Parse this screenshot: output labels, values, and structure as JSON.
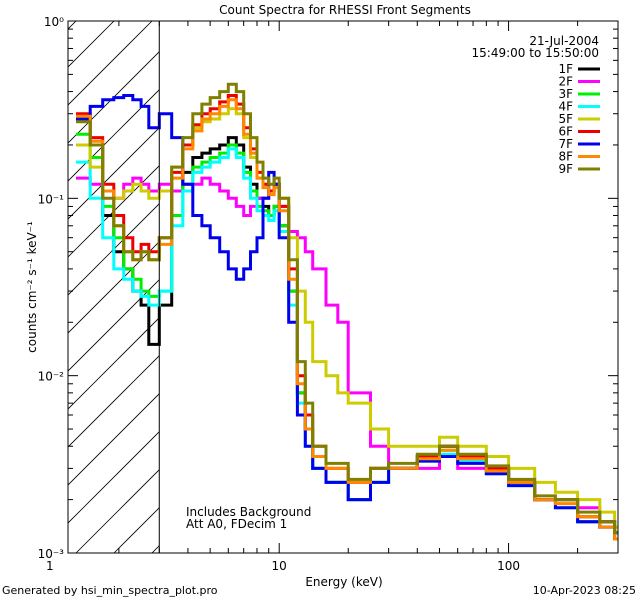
{
  "chart_data": {
    "type": "line",
    "title": "Count Spectra for RHESSI Front Segments",
    "xlabel": "Energy (keV)",
    "ylabel": "counts cm⁻² s⁻¹ keV⁻¹",
    "xscale": "log",
    "yscale": "log",
    "xlim": [
      1.2,
      300
    ],
    "ylim": [
      0.001,
      1.0
    ],
    "x_ticks": [
      {
        "value": 1,
        "label": "1"
      },
      {
        "value": 10,
        "label": "10"
      },
      {
        "value": 100,
        "label": "100"
      }
    ],
    "y_ticks": [
      {
        "value": 1,
        "label": "10⁰"
      },
      {
        "value": 0.1,
        "label": "10⁻¹"
      },
      {
        "value": 0.01,
        "label": "10⁻²"
      },
      {
        "value": 0.001,
        "label": "10⁻³"
      }
    ],
    "attenuator_cutoff_keV": 3,
    "legend_position": "top-right",
    "date": "21-Jul-2004",
    "time_range": "15:49:00 to 15:50:00",
    "annotation_lines": [
      "Includes Background",
      "Att A0, FDecim 1"
    ],
    "footer_left": "Generated by hsi_min_spectra_plot.pro",
    "footer_right": "10-Apr-2023 08:25",
    "series": [
      {
        "name": "1F",
        "color": "#000000",
        "x": [
          1.3,
          1.5,
          1.7,
          1.9,
          2.1,
          2.3,
          2.5,
          2.7,
          3.0,
          3.4,
          3.8,
          4.2,
          4.6,
          5.0,
          5.5,
          6.0,
          6.5,
          7.0,
          7.5,
          8.0,
          8.5,
          9.0,
          9.5,
          10.0,
          11.0,
          12.0,
          13.0,
          14.0,
          16.0,
          20.0,
          25.0,
          30.0,
          40.0,
          50.0,
          60.0,
          80.0,
          100.0,
          130.0,
          160.0,
          200.0,
          250.0,
          290.0
        ],
        "y": [
          0.28,
          0.2,
          0.08,
          0.05,
          0.04,
          0.03,
          0.025,
          0.015,
          0.025,
          0.11,
          0.14,
          0.17,
          0.18,
          0.19,
          0.2,
          0.22,
          0.2,
          0.15,
          0.12,
          0.1,
          0.09,
          0.08,
          0.09,
          0.07,
          0.03,
          0.008,
          0.005,
          0.003,
          0.0025,
          0.002,
          0.003,
          0.003,
          0.0035,
          0.004,
          0.0035,
          0.003,
          0.0025,
          0.002,
          0.002,
          0.0015,
          0.0015,
          0.0013
        ]
      },
      {
        "name": "2F",
        "color": "#ff00ff",
        "x": [
          1.3,
          1.5,
          1.7,
          1.9,
          2.1,
          2.3,
          2.5,
          2.7,
          3.0,
          3.4,
          3.8,
          4.2,
          4.6,
          5.0,
          5.5,
          6.0,
          6.5,
          7.0,
          7.5,
          8.0,
          8.5,
          9.0,
          9.5,
          10.0,
          11.0,
          12.0,
          13.0,
          14.0,
          16.0,
          18.0,
          20.0,
          25.0,
          30.0,
          40.0,
          50.0,
          60.0,
          80.0,
          100.0,
          130.0,
          160.0,
          200.0,
          250.0,
          290.0
        ],
        "y": [
          0.13,
          0.12,
          0.11,
          0.1,
          0.12,
          0.13,
          0.12,
          0.11,
          0.12,
          0.11,
          0.12,
          0.12,
          0.13,
          0.12,
          0.11,
          0.1,
          0.09,
          0.08,
          0.09,
          0.1,
          0.1,
          0.11,
          0.12,
          0.09,
          0.065,
          0.06,
          0.05,
          0.04,
          0.025,
          0.02,
          0.008,
          0.004,
          0.003,
          0.003,
          0.0035,
          0.003,
          0.003,
          0.0025,
          0.002,
          0.002,
          0.0018,
          0.0015,
          0.0013
        ]
      },
      {
        "name": "3F",
        "color": "#00ee00",
        "x": [
          1.3,
          1.5,
          1.7,
          1.9,
          2.1,
          2.3,
          2.5,
          2.7,
          3.0,
          3.4,
          3.8,
          4.2,
          4.6,
          5.0,
          5.5,
          6.0,
          6.5,
          7.0,
          7.5,
          8.0,
          8.5,
          9.0,
          9.5,
          10.0,
          11.0,
          12.0,
          13.0,
          14.0,
          16.0,
          20.0,
          25.0,
          30.0,
          40.0,
          50.0,
          60.0,
          80.0,
          100.0,
          130.0,
          160.0,
          200.0,
          250.0,
          290.0
        ],
        "y": [
          0.23,
          0.17,
          0.09,
          0.06,
          0.04,
          0.035,
          0.03,
          0.028,
          0.03,
          0.08,
          0.12,
          0.15,
          0.16,
          0.17,
          0.18,
          0.2,
          0.18,
          0.14,
          0.11,
          0.09,
          0.085,
          0.08,
          0.09,
          0.07,
          0.03,
          0.008,
          0.005,
          0.003,
          0.0025,
          0.002,
          0.0025,
          0.003,
          0.0035,
          0.0038,
          0.0035,
          0.003,
          0.0025,
          0.002,
          0.002,
          0.0016,
          0.0015,
          0.0013
        ]
      },
      {
        "name": "4F",
        "color": "#00ffff",
        "x": [
          1.3,
          1.5,
          1.7,
          1.9,
          2.1,
          2.3,
          2.5,
          2.7,
          3.0,
          3.4,
          3.8,
          4.2,
          4.6,
          5.0,
          5.5,
          6.0,
          6.5,
          7.0,
          7.5,
          8.0,
          8.5,
          9.0,
          9.5,
          10.0,
          11.0,
          12.0,
          13.0,
          14.0,
          16.0,
          20.0,
          25.0,
          30.0,
          40.0,
          50.0,
          60.0,
          80.0,
          100.0,
          130.0,
          160.0,
          200.0,
          250.0,
          290.0
        ],
        "y": [
          0.16,
          0.1,
          0.06,
          0.04,
          0.035,
          0.03,
          0.028,
          0.025,
          0.03,
          0.07,
          0.11,
          0.14,
          0.15,
          0.16,
          0.17,
          0.19,
          0.17,
          0.13,
          0.1,
          0.085,
          0.08,
          0.075,
          0.085,
          0.065,
          0.025,
          0.007,
          0.004,
          0.003,
          0.0025,
          0.002,
          0.0025,
          0.003,
          0.0033,
          0.0036,
          0.0033,
          0.0028,
          0.0024,
          0.002,
          0.0018,
          0.0015,
          0.0014,
          0.0012
        ]
      },
      {
        "name": "5F",
        "color": "#cccc00",
        "x": [
          1.3,
          1.5,
          1.7,
          1.9,
          2.1,
          2.3,
          2.5,
          2.7,
          3.0,
          3.4,
          3.8,
          4.2,
          4.6,
          5.0,
          5.5,
          6.0,
          6.5,
          7.0,
          7.5,
          8.0,
          8.5,
          9.0,
          9.5,
          10.0,
          11.0,
          12.0,
          13.0,
          14.0,
          16.0,
          18.0,
          20.0,
          25.0,
          30.0,
          40.0,
          50.0,
          60.0,
          80.0,
          100.0,
          130.0,
          160.0,
          200.0,
          250.0,
          290.0
        ],
        "y": [
          0.2,
          0.15,
          0.11,
          0.1,
          0.11,
          0.12,
          0.11,
          0.1,
          0.11,
          0.15,
          0.2,
          0.25,
          0.27,
          0.28,
          0.3,
          0.32,
          0.3,
          0.22,
          0.17,
          0.13,
          0.12,
          0.11,
          0.12,
          0.1,
          0.06,
          0.03,
          0.02,
          0.012,
          0.01,
          0.008,
          0.007,
          0.005,
          0.004,
          0.004,
          0.0045,
          0.004,
          0.0035,
          0.003,
          0.0025,
          0.0022,
          0.002,
          0.0017,
          0.0014
        ]
      },
      {
        "name": "6F",
        "color": "#ee0000",
        "x": [
          1.3,
          1.5,
          1.7,
          1.9,
          2.1,
          2.3,
          2.5,
          2.7,
          3.0,
          3.4,
          3.8,
          4.2,
          4.6,
          5.0,
          5.5,
          6.0,
          6.5,
          7.0,
          7.5,
          8.0,
          8.5,
          9.0,
          9.5,
          10.0,
          11.0,
          12.0,
          13.0,
          14.0,
          16.0,
          20.0,
          25.0,
          30.0,
          40.0,
          50.0,
          60.0,
          80.0,
          100.0,
          130.0,
          160.0,
          200.0,
          250.0,
          290.0
        ],
        "y": [
          0.3,
          0.22,
          0.12,
          0.08,
          0.06,
          0.05,
          0.055,
          0.05,
          0.06,
          0.14,
          0.2,
          0.26,
          0.3,
          0.32,
          0.35,
          0.38,
          0.34,
          0.25,
          0.19,
          0.14,
          0.12,
          0.11,
          0.12,
          0.09,
          0.04,
          0.01,
          0.006,
          0.004,
          0.003,
          0.0025,
          0.003,
          0.003,
          0.0035,
          0.004,
          0.0035,
          0.003,
          0.0025,
          0.002,
          0.002,
          0.0016,
          0.0015,
          0.0013
        ]
      },
      {
        "name": "7F",
        "color": "#0000ee",
        "x": [
          1.3,
          1.5,
          1.7,
          1.9,
          2.1,
          2.3,
          2.5,
          2.7,
          3.0,
          3.4,
          3.8,
          4.2,
          4.6,
          5.0,
          5.5,
          6.0,
          6.5,
          7.0,
          7.5,
          8.0,
          8.5,
          9.0,
          9.5,
          10.0,
          11.0,
          12.0,
          13.0,
          14.0,
          16.0,
          20.0,
          25.0,
          30.0,
          40.0,
          50.0,
          60.0,
          80.0,
          100.0,
          130.0,
          160.0,
          200.0,
          250.0,
          290.0
        ],
        "y": [
          0.28,
          0.33,
          0.36,
          0.37,
          0.38,
          0.36,
          0.33,
          0.25,
          0.3,
          0.22,
          0.12,
          0.08,
          0.07,
          0.06,
          0.05,
          0.04,
          0.035,
          0.04,
          0.05,
          0.06,
          0.1,
          0.14,
          0.12,
          0.06,
          0.02,
          0.006,
          0.004,
          0.003,
          0.0025,
          0.002,
          0.0025,
          0.003,
          0.0033,
          0.0035,
          0.0032,
          0.0028,
          0.0024,
          0.002,
          0.0018,
          0.0015,
          0.0014,
          0.0012
        ]
      },
      {
        "name": "8F",
        "color": "#ff8800",
        "x": [
          1.3,
          1.5,
          1.7,
          1.9,
          2.1,
          2.3,
          2.5,
          2.7,
          3.0,
          3.4,
          3.8,
          4.2,
          4.6,
          5.0,
          5.5,
          6.0,
          6.5,
          7.0,
          7.5,
          8.0,
          8.5,
          9.0,
          9.5,
          10.0,
          11.0,
          12.0,
          13.0,
          14.0,
          16.0,
          20.0,
          25.0,
          30.0,
          40.0,
          50.0,
          60.0,
          80.0,
          100.0,
          130.0,
          160.0,
          200.0,
          250.0,
          290.0
        ],
        "y": [
          0.29,
          0.21,
          0.11,
          0.07,
          0.05,
          0.045,
          0.05,
          0.045,
          0.055,
          0.13,
          0.19,
          0.24,
          0.28,
          0.3,
          0.33,
          0.36,
          0.32,
          0.23,
          0.18,
          0.13,
          0.115,
          0.105,
          0.115,
          0.085,
          0.035,
          0.009,
          0.005,
          0.0035,
          0.003,
          0.0025,
          0.003,
          0.003,
          0.0034,
          0.0038,
          0.0034,
          0.0029,
          0.0025,
          0.002,
          0.0019,
          0.0016,
          0.0014,
          0.0012
        ]
      },
      {
        "name": "9F",
        "color": "#808000",
        "x": [
          1.3,
          1.5,
          1.7,
          1.9,
          2.1,
          2.3,
          2.5,
          2.7,
          3.0,
          3.4,
          3.8,
          4.2,
          4.6,
          5.0,
          5.5,
          6.0,
          6.5,
          7.0,
          7.5,
          8.0,
          8.5,
          9.0,
          9.5,
          10.0,
          11.0,
          12.0,
          13.0,
          14.0,
          16.0,
          20.0,
          25.0,
          30.0,
          40.0,
          50.0,
          60.0,
          80.0,
          100.0,
          130.0,
          160.0,
          200.0,
          250.0,
          290.0
        ],
        "y": [
          0.27,
          0.2,
          0.1,
          0.07,
          0.05,
          0.045,
          0.05,
          0.045,
          0.06,
          0.15,
          0.22,
          0.3,
          0.34,
          0.37,
          0.4,
          0.44,
          0.4,
          0.3,
          0.22,
          0.16,
          0.13,
          0.12,
          0.13,
          0.1,
          0.045,
          0.012,
          0.007,
          0.004,
          0.0032,
          0.0026,
          0.003,
          0.0032,
          0.0036,
          0.004,
          0.0036,
          0.0031,
          0.0026,
          0.0021,
          0.002,
          0.0017,
          0.0015,
          0.0013
        ]
      }
    ]
  }
}
